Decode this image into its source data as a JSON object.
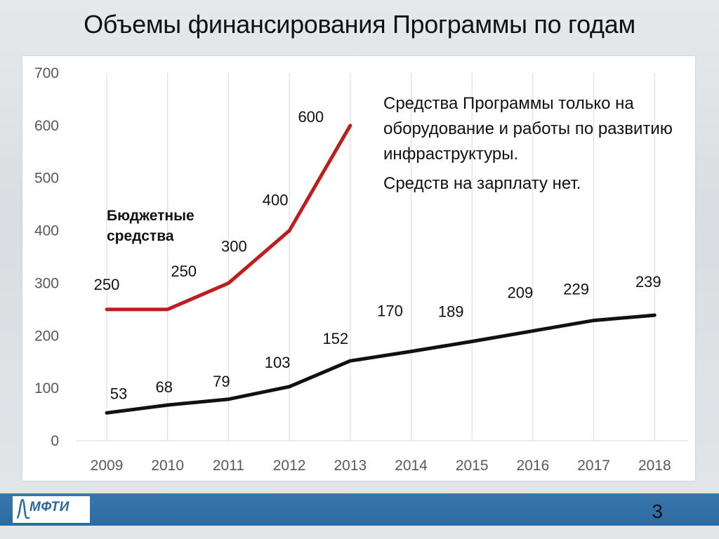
{
  "slide": {
    "title": "Объемы финансирования Программы по годам",
    "page_number": "3",
    "logo_text": "МФТИ"
  },
  "annotation": {
    "line1": "Средства Программы только на оборудование и работы по развитию инфраструктуры.",
    "line2": "Средств на зарплату нет."
  },
  "series_label": "Бюджетные средства",
  "colors": {
    "budget": "#c01c1c",
    "program": "#111111",
    "grid": "#d9d9d9",
    "axis_text": "#595959"
  },
  "chart_data": {
    "type": "line",
    "title": "Объемы финансирования Программы по годам",
    "xlabel": "",
    "ylabel": "",
    "ylim": [
      0,
      700
    ],
    "yticks": [
      0,
      100,
      200,
      300,
      400,
      500,
      600,
      700
    ],
    "categories": [
      "2009",
      "2010",
      "2011",
      "2012",
      "2013",
      "2014",
      "2015",
      "2016",
      "2017",
      "2018"
    ],
    "grid": "vertical",
    "series": [
      {
        "key": "budget",
        "name": "Бюджетные средства",
        "values": [
          250,
          250,
          300,
          400,
          600,
          null,
          null,
          null,
          null,
          null
        ]
      },
      {
        "key": "program",
        "values": [
          53,
          68,
          79,
          103,
          152,
          170,
          189,
          209,
          229,
          239
        ]
      }
    ]
  }
}
